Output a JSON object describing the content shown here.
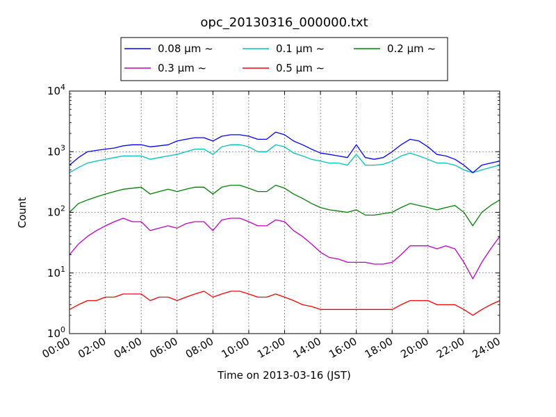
{
  "chart_data": {
    "type": "line",
    "title": "opc_20130316_000000.txt",
    "xlabel": "Time on 2013-03-16 (JST)",
    "ylabel": "Count",
    "y_scale": "log",
    "ylim": [
      1,
      10000
    ],
    "xlim": [
      "00:00",
      "24:00"
    ],
    "grid": true,
    "legend_position": "top-center",
    "x_ticks": [
      "00:00",
      "02:00",
      "04:00",
      "06:00",
      "08:00",
      "10:00",
      "12:00",
      "14:00",
      "16:00",
      "18:00",
      "20:00",
      "22:00",
      "24:00"
    ],
    "y_ticks": [
      {
        "base": "10",
        "exp": "0"
      },
      {
        "base": "10",
        "exp": "1"
      },
      {
        "base": "10",
        "exp": "2"
      },
      {
        "base": "10",
        "exp": "3"
      },
      {
        "base": "10",
        "exp": "4"
      }
    ],
    "x_hours": [
      0,
      0.5,
      1,
      1.5,
      2,
      2.5,
      3,
      3.5,
      4,
      4.5,
      5,
      5.5,
      6,
      6.5,
      7,
      7.5,
      8,
      8.5,
      9,
      9.5,
      10,
      10.5,
      11,
      11.5,
      12,
      12.5,
      13,
      13.5,
      14,
      14.5,
      15,
      15.5,
      16,
      16.5,
      17,
      17.5,
      18,
      18.5,
      19,
      19.5,
      20,
      20.5,
      21,
      21.5,
      22,
      22.5,
      23,
      23.5,
      24
    ],
    "series": [
      {
        "name": "0.08 μm ~",
        "color": "#0000ff",
        "values": [
          600,
          800,
          1000,
          1050,
          1100,
          1150,
          1250,
          1300,
          1300,
          1200,
          1250,
          1300,
          1500,
          1600,
          1700,
          1700,
          1500,
          1800,
          1900,
          1900,
          1800,
          1600,
          1600,
          2100,
          1900,
          1500,
          1300,
          1100,
          950,
          900,
          850,
          800,
          1300,
          800,
          750,
          800,
          1000,
          1300,
          1600,
          1500,
          1200,
          900,
          850,
          750,
          600,
          450,
          600,
          650,
          700
        ]
      },
      {
        "name": "0.1 μm ~",
        "color": "#00c0c0",
        "values": [
          450,
          550,
          650,
          700,
          750,
          800,
          850,
          850,
          850,
          750,
          800,
          850,
          900,
          1000,
          1100,
          1100,
          900,
          1200,
          1300,
          1300,
          1200,
          1000,
          1000,
          1300,
          1200,
          950,
          850,
          750,
          700,
          650,
          650,
          600,
          900,
          600,
          600,
          620,
          700,
          850,
          950,
          850,
          750,
          650,
          650,
          600,
          500,
          450,
          500,
          550,
          600
        ]
      },
      {
        "name": "0.2 μm ~",
        "color": "#008000",
        "values": [
          100,
          140,
          160,
          180,
          200,
          220,
          240,
          250,
          260,
          200,
          220,
          240,
          220,
          240,
          260,
          260,
          200,
          260,
          280,
          280,
          250,
          220,
          220,
          280,
          250,
          200,
          170,
          140,
          120,
          110,
          105,
          100,
          110,
          90,
          90,
          95,
          100,
          120,
          140,
          130,
          120,
          110,
          120,
          130,
          100,
          60,
          100,
          130,
          160
        ]
      },
      {
        "name": "0.3 μm ~",
        "color": "#c000c0",
        "values": [
          20,
          30,
          40,
          50,
          60,
          70,
          80,
          70,
          70,
          50,
          55,
          60,
          55,
          65,
          70,
          70,
          50,
          75,
          80,
          80,
          70,
          60,
          60,
          75,
          70,
          50,
          40,
          30,
          22,
          18,
          17,
          15,
          15,
          15,
          14,
          14,
          15,
          20,
          28,
          28,
          28,
          25,
          28,
          25,
          15,
          8,
          15,
          25,
          40
        ]
      },
      {
        "name": "0.5 μm ~",
        "color": "#ff0000",
        "values": [
          2.5,
          3,
          3.5,
          3.5,
          4,
          4,
          4.5,
          4.5,
          4.5,
          3.5,
          4,
          4,
          3.5,
          4,
          4.5,
          5,
          4,
          4.5,
          5,
          5,
          4.5,
          4,
          4,
          4.5,
          4,
          3.5,
          3,
          2.8,
          2.5,
          2.5,
          2.5,
          2.5,
          2.5,
          2.5,
          2.5,
          2.5,
          2.5,
          3,
          3.5,
          3.5,
          3.5,
          3,
          3,
          3,
          2.5,
          2,
          2.5,
          3,
          3.5
        ]
      }
    ]
  }
}
